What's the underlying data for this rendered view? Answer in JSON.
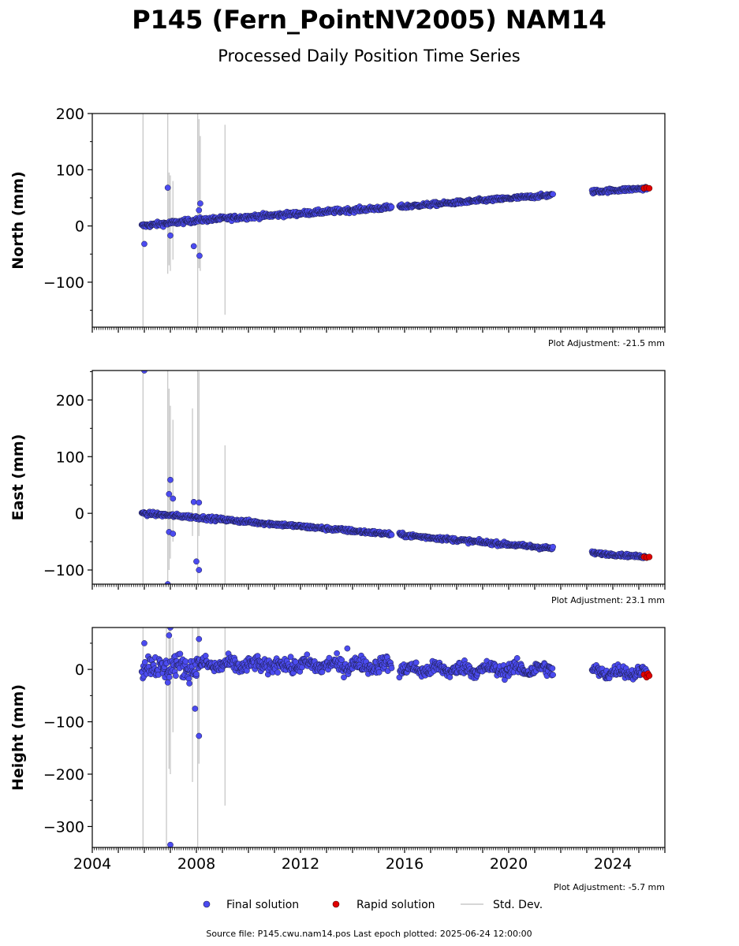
{
  "title": "P145 (Fern_PointNV2005) NAM14",
  "subtitle": "Processed Daily Position Time Series",
  "colors": {
    "final": "#4b4bf0",
    "final_edge": "#1a1a40",
    "rapid": "#e00000",
    "stddev": "#c8c8c8"
  },
  "legend": {
    "final": "Final solution",
    "rapid": "Rapid solution",
    "stddev": "Std. Dev."
  },
  "footer": "Source file: P145.cwu.nam14.pos  Last epoch plotted: 2025-06-24 12:00:00",
  "xaxis": {
    "range": [
      2004.0,
      2026.0
    ],
    "ticks": [
      2004,
      2008,
      2012,
      2016,
      2020,
      2024
    ],
    "tick_labels": [
      "2004",
      "2008",
      "2012",
      "2016",
      "2020",
      "2024"
    ]
  },
  "chart_data": [
    {
      "type": "scatter",
      "ylabel": "North (mm)",
      "ylim": [
        -180,
        200
      ],
      "yticks": [
        -100,
        0,
        100,
        200
      ],
      "ytick_labels": [
        "−100",
        "0",
        "100",
        "200"
      ],
      "adjustment": "Plot Adjustment: -21.5 mm",
      "segments": [
        {
          "x": [
            2005.9,
            2008.0
          ],
          "y": [
            0,
            10
          ],
          "scatter": 3
        },
        {
          "x": [
            2008.0,
            2015.5
          ],
          "y": [
            10,
            33
          ],
          "scatter": 3
        },
        {
          "x": [
            2015.8,
            2021.7
          ],
          "y": [
            34,
            55
          ],
          "scatter": 2.5
        },
        {
          "x": [
            2023.2,
            2025.3
          ],
          "y": [
            61,
            67
          ],
          "scatter": 2.5
        }
      ],
      "outliers": [
        [
          2006.0,
          -32
        ],
        [
          2006.9,
          68
        ],
        [
          2007.0,
          -17
        ],
        [
          2007.9,
          -36
        ],
        [
          2008.1,
          28
        ],
        [
          2008.15,
          40
        ],
        [
          2008.12,
          -53
        ]
      ],
      "rapid": [
        [
          2025.2,
          67
        ],
        [
          2025.3,
          68
        ],
        [
          2025.4,
          67
        ]
      ],
      "stddev_bars": [
        [
          2005.95,
          -180,
          200
        ],
        [
          2006.9,
          -85,
          200
        ],
        [
          2006.95,
          -70,
          95
        ],
        [
          2007.0,
          -80,
          90
        ],
        [
          2007.1,
          -60,
          80
        ],
        [
          2008.05,
          -180,
          200
        ],
        [
          2008.1,
          -75,
          190
        ],
        [
          2008.15,
          -80,
          160
        ],
        [
          2009.1,
          -158,
          180
        ]
      ]
    },
    {
      "type": "scatter",
      "ylabel": "East (mm)",
      "ylim": [
        -125,
        252
      ],
      "yticks": [
        -100,
        0,
        100,
        200
      ],
      "ytick_labels": [
        "−100",
        "0",
        "100",
        "200"
      ],
      "adjustment": "Plot Adjustment: 23.1 mm",
      "segments": [
        {
          "x": [
            2005.9,
            2008.0
          ],
          "y": [
            0,
            -7
          ],
          "scatter": 2.5
        },
        {
          "x": [
            2008.0,
            2015.5
          ],
          "y": [
            -7,
            -37
          ],
          "scatter": 2.5
        },
        {
          "x": [
            2015.8,
            2021.7
          ],
          "y": [
            -38,
            -62
          ],
          "scatter": 2.5
        },
        {
          "x": [
            2023.2,
            2025.3
          ],
          "y": [
            -70,
            -77
          ],
          "scatter": 2
        }
      ],
      "outliers": [
        [
          2006.0,
          252
        ],
        [
          2006.95,
          34
        ],
        [
          2007.0,
          59
        ],
        [
          2007.1,
          26
        ],
        [
          2006.95,
          -33
        ],
        [
          2007.1,
          -36
        ],
        [
          2006.9,
          -125
        ],
        [
          2007.9,
          20
        ],
        [
          2008.1,
          19
        ],
        [
          2008.0,
          -85
        ],
        [
          2008.1,
          -100
        ]
      ],
      "rapid": [
        [
          2025.2,
          -77
        ],
        [
          2025.3,
          -78
        ],
        [
          2025.4,
          -77
        ]
      ],
      "stddev_bars": [
        [
          2005.95,
          -125,
          252
        ],
        [
          2006.9,
          -125,
          252
        ],
        [
          2006.95,
          -100,
          220
        ],
        [
          2007.0,
          -80,
          190
        ],
        [
          2007.1,
          -50,
          165
        ],
        [
          2007.85,
          -40,
          185
        ],
        [
          2008.05,
          -125,
          252
        ],
        [
          2008.1,
          -40,
          250
        ],
        [
          2009.1,
          -125,
          120
        ]
      ]
    },
    {
      "type": "scatter",
      "ylabel": "Height (mm)",
      "ylim": [
        -340,
        80
      ],
      "yticks": [
        -300,
        -200,
        -100,
        0
      ],
      "ytick_labels": [
        "−300",
        "−200",
        "−100",
        "0"
      ],
      "adjustment": "Plot Adjustment: -5.7 mm",
      "segments": [
        {
          "x": [
            2005.9,
            2008.0
          ],
          "y": [
            5,
            5
          ],
          "scatter": 16
        },
        {
          "x": [
            2008.0,
            2015.5
          ],
          "y": [
            8,
            8
          ],
          "scatter": 10
        },
        {
          "x": [
            2015.8,
            2021.7
          ],
          "y": [
            0,
            0
          ],
          "scatter": 9
        },
        {
          "x": [
            2023.2,
            2025.3
          ],
          "y": [
            -5,
            -5
          ],
          "scatter": 8
        }
      ],
      "outliers": [
        [
          2006.0,
          50
        ],
        [
          2006.95,
          65
        ],
        [
          2007.0,
          80
        ],
        [
          2008.1,
          58
        ],
        [
          2007.95,
          -75
        ],
        [
          2008.1,
          -127
        ],
        [
          2006.9,
          -25
        ],
        [
          2007.0,
          -335
        ],
        [
          2013.8,
          40
        ]
      ],
      "rapid": [
        [
          2025.2,
          -10
        ],
        [
          2025.3,
          -15
        ],
        [
          2025.35,
          -8
        ],
        [
          2025.4,
          -12
        ]
      ],
      "stddev_bars": [
        [
          2005.95,
          -340,
          80
        ],
        [
          2006.85,
          -340,
          80
        ],
        [
          2006.95,
          -190,
          80
        ],
        [
          2007.0,
          -200,
          75
        ],
        [
          2007.1,
          -120,
          60
        ],
        [
          2007.85,
          -215,
          80
        ],
        [
          2008.05,
          -340,
          80
        ],
        [
          2008.1,
          -180,
          80
        ],
        [
          2009.1,
          -260,
          80
        ]
      ]
    }
  ]
}
